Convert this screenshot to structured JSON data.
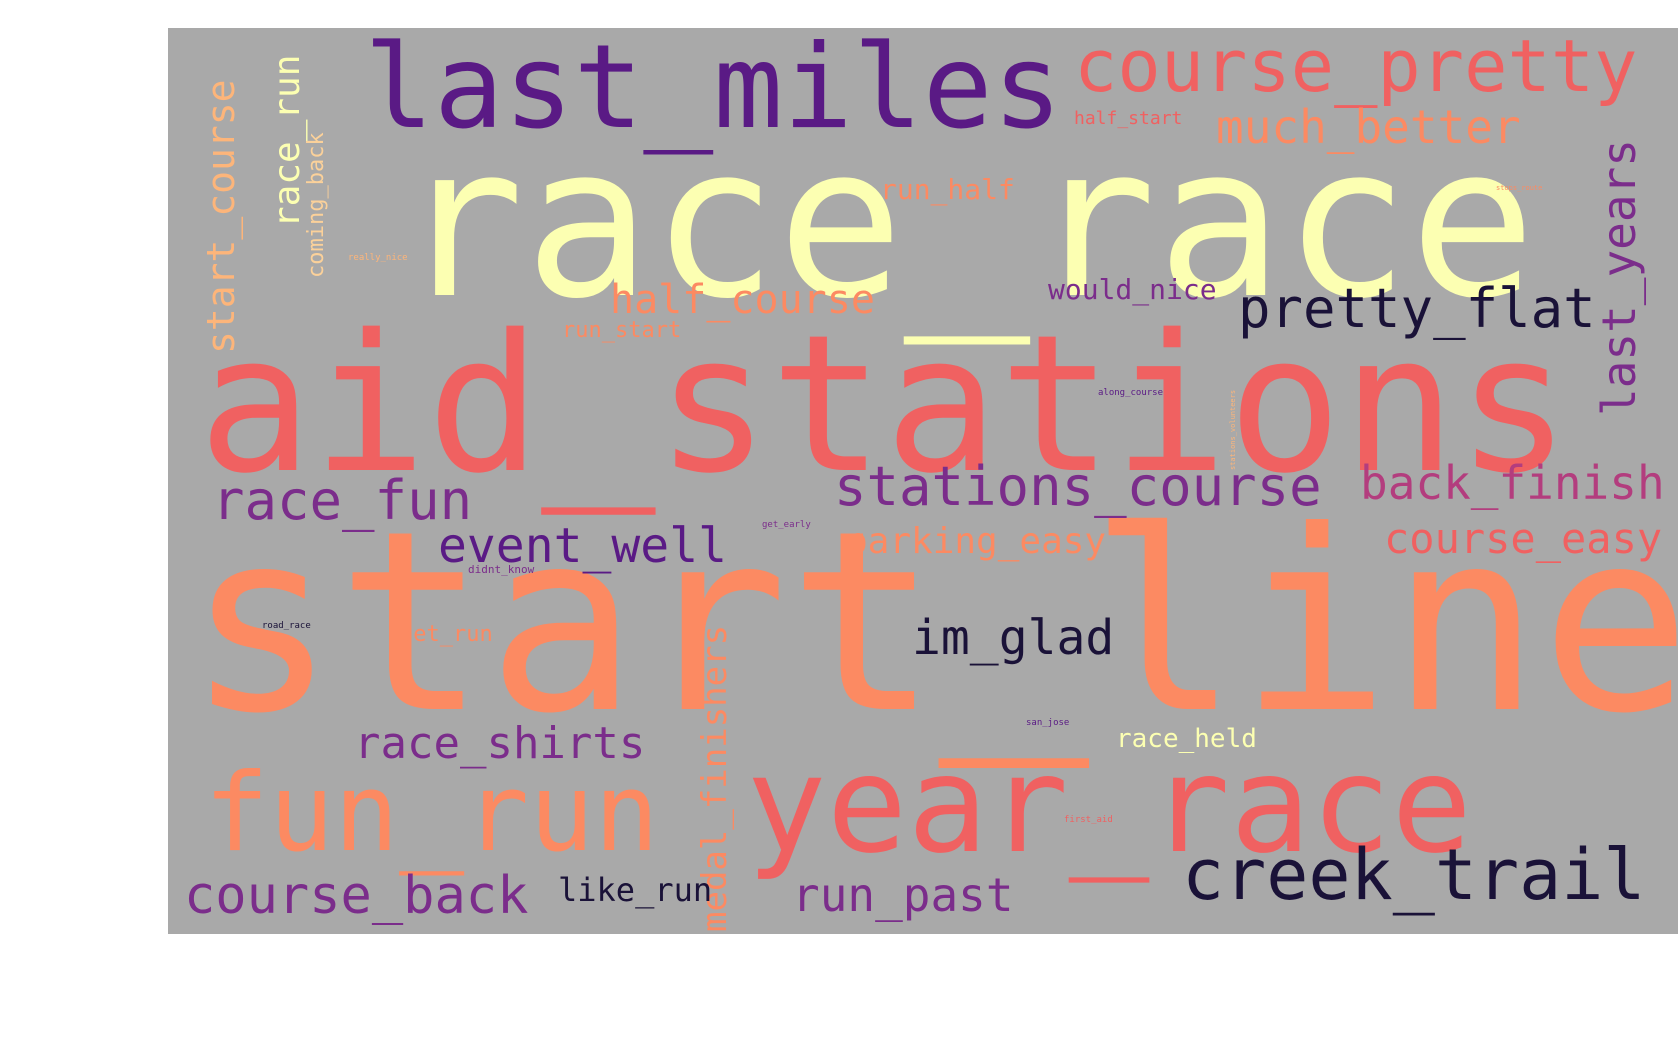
{
  "colors": {
    "background_panel": "#a9a9a9",
    "page": "#ffffff",
    "palette": [
      "#fcffb2",
      "#f06161",
      "#fc8a62",
      "#7b2d8b",
      "#5a1a85",
      "#1a1238",
      "#fdb57a",
      "#b33d7e",
      "#fbd19a"
    ]
  },
  "words": {
    "start_line": "start_line",
    "aid_stations": "aid_stations",
    "race_race": "race_race",
    "year_race": "year_race",
    "last_miles": "last_miles",
    "fun_run": "fun_run",
    "course_pretty": "course_pretty",
    "creek_trail": "creek_trail",
    "stations_course": "stations_course",
    "pretty_flat": "pretty_flat",
    "back_finish": "back_finish",
    "race_fun": "race_fun",
    "course_back": "course_back",
    "event_well": "event_well",
    "course_easy": "course_easy",
    "much_better": "much_better",
    "race_shirts": "race_shirts",
    "im_glad": "im_glad",
    "run_past": "run_past",
    "half_course": "half_course",
    "last_years": "last_years",
    "start_course": "start_course",
    "race_run": "race_run",
    "medal_finishers": "medal_finishers",
    "parking_easy": "parking_easy",
    "like_run": "like_run",
    "would_nice": "would_nice",
    "run_half": "run_half",
    "race_held": "race_held",
    "coming_back": "coming_back",
    "get_run": "get_run",
    "run_start": "run_start",
    "half_start": "half_start",
    "really_nice": "really_nice",
    "along_course": "along_course",
    "get_early": "get_early",
    "didnt_know": "didnt_know",
    "road_race": "road_race",
    "san_jose": "san_jose",
    "first_aid": "first_aid",
    "stations_volunteers": "stations_volunteers",
    "tiny_top_right": "stops_route"
  }
}
